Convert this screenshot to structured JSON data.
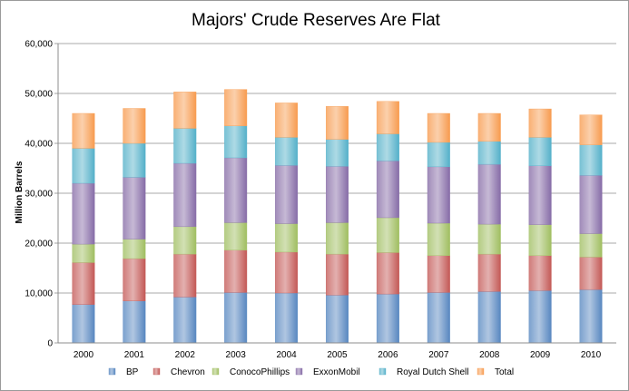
{
  "chart_data": {
    "type": "bar",
    "stacked": true,
    "title": "Majors' Crude Reserves Are Flat",
    "xlabel": "",
    "ylabel": "Million Barrels",
    "ylim": [
      0,
      60000
    ],
    "yticks": [
      0,
      10000,
      20000,
      30000,
      40000,
      50000,
      60000
    ],
    "ytick_labels": [
      "0",
      "10,000",
      "20,000",
      "30,000",
      "40,000",
      "50,000",
      "60,000"
    ],
    "grid": true,
    "legend": "bottom",
    "categories": [
      "2000",
      "2001",
      "2002",
      "2003",
      "2004",
      "2005",
      "2006",
      "2007",
      "2008",
      "2009",
      "2010"
    ],
    "series": [
      {
        "name": "BP",
        "color": "#4f81bd",
        "values": [
          7700,
          8400,
          9200,
          10100,
          10000,
          9600,
          9800,
          10100,
          10300,
          10500,
          10700
        ]
      },
      {
        "name": "Chevron",
        "color": "#c0504d",
        "values": [
          8400,
          8500,
          8600,
          8500,
          8200,
          8200,
          8300,
          7400,
          7500,
          7000,
          6500
        ]
      },
      {
        "name": "ConocoPhillips",
        "color": "#9bbb59",
        "values": [
          3700,
          3900,
          5500,
          5500,
          5700,
          6300,
          7000,
          6500,
          6000,
          6200,
          4700
        ]
      },
      {
        "name": "ExxonMobil",
        "color": "#8064a2",
        "values": [
          12200,
          12400,
          12700,
          13000,
          11700,
          11300,
          11400,
          11300,
          12000,
          11800,
          11700
        ]
      },
      {
        "name": "Royal Dutch Shell",
        "color": "#4bacc6",
        "values": [
          7000,
          6800,
          7000,
          6400,
          5600,
          5400,
          5400,
          4900,
          4600,
          5700,
          6100
        ]
      },
      {
        "name": "Total",
        "color": "#f79646",
        "values": [
          7000,
          7000,
          7300,
          7300,
          6900,
          6600,
          6500,
          5800,
          5600,
          5700,
          6000
        ]
      }
    ]
  }
}
